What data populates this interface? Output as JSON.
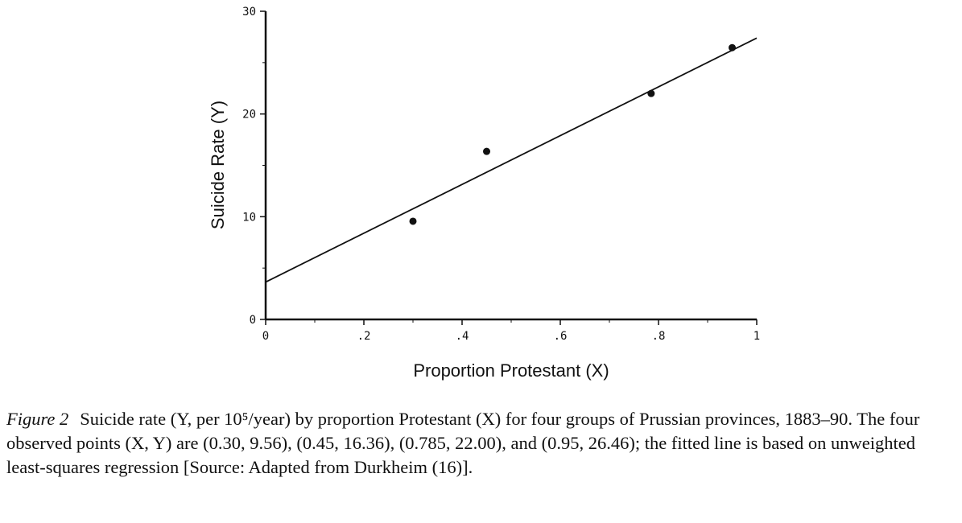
{
  "chart_data": {
    "type": "scatter",
    "xlabel": "Proportion Protestant (X)",
    "ylabel": "Suicide Rate (Y)",
    "xlim": [
      0,
      1
    ],
    "ylim": [
      0,
      30
    ],
    "x_ticks": [
      0,
      0.2,
      0.4,
      0.6,
      0.8,
      1
    ],
    "x_tick_labels": [
      "0",
      ".2",
      ".4",
      ".6",
      ".8",
      "1"
    ],
    "y_ticks": [
      0,
      10,
      20,
      30
    ],
    "y_tick_labels": [
      "0",
      "10",
      "20",
      "30"
    ],
    "grid": false,
    "points": [
      {
        "x": 0.3,
        "y": 9.56
      },
      {
        "x": 0.45,
        "y": 16.36
      },
      {
        "x": 0.785,
        "y": 22.0
      },
      {
        "x": 0.95,
        "y": 26.46
      }
    ],
    "fit_line": {
      "intercept": 3.64,
      "slope": 23.75
    }
  },
  "caption": {
    "figure_label": "Figure 2",
    "text": "Suicide rate (Y, per 10⁵/year) by proportion Protestant (X) for four groups of Prussian provinces, 1883–90. The four observed points (X, Y) are (0.30, 9.56), (0.45, 16.36), (0.785, 22.00), and (0.95, 26.46); the fitted line is based on unweighted least-squares regression [Source: Adapted from Durkheim (16)]."
  }
}
